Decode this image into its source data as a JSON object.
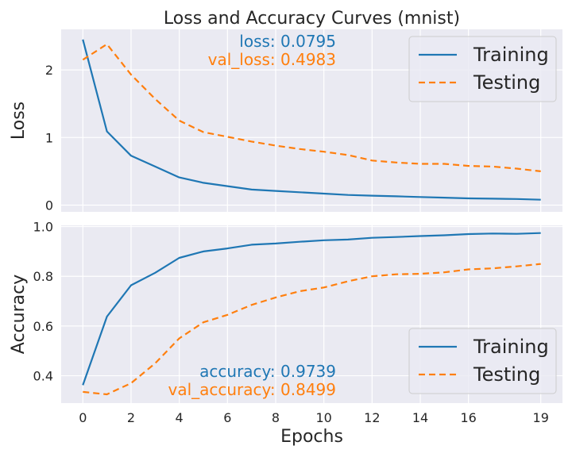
{
  "chart_data": [
    {
      "type": "line",
      "title": "Loss and Accuracy Curves (mnist)",
      "xlabel": "",
      "ylabel": "Loss",
      "x": [
        0,
        1,
        2,
        3,
        4,
        5,
        6,
        7,
        8,
        9,
        10,
        11,
        12,
        13,
        14,
        15,
        16,
        17,
        18,
        19
      ],
      "xlim": [
        -0.9,
        19.9
      ],
      "ylim": [
        -0.1,
        2.6
      ],
      "yticks": [
        0,
        1,
        2
      ],
      "grid": true,
      "legend_position": "top-right",
      "series": [
        {
          "name": "Training",
          "style": "solid",
          "color": "#1f77b4",
          "values": [
            2.45,
            1.09,
            0.73,
            0.57,
            0.41,
            0.33,
            0.28,
            0.23,
            0.21,
            0.19,
            0.17,
            0.15,
            0.14,
            0.13,
            0.12,
            0.11,
            0.1,
            0.095,
            0.09,
            0.08
          ]
        },
        {
          "name": "Testing",
          "style": "dashed",
          "color": "#ff7f0e",
          "values": [
            2.15,
            2.38,
            1.93,
            1.57,
            1.25,
            1.08,
            1.01,
            0.94,
            0.88,
            0.83,
            0.79,
            0.74,
            0.66,
            0.63,
            0.61,
            0.61,
            0.58,
            0.57,
            0.54,
            0.5
          ]
        }
      ],
      "annotations": [
        {
          "text": "loss: 0.0795",
          "color": "#1f77b4"
        },
        {
          "text": "val_loss: 0.4983",
          "color": "#ff7f0e"
        }
      ]
    },
    {
      "type": "line",
      "title": "",
      "xlabel": "Epochs",
      "ylabel": "Accuracy",
      "x": [
        0,
        1,
        2,
        3,
        4,
        5,
        6,
        7,
        8,
        9,
        10,
        11,
        12,
        13,
        14,
        15,
        16,
        17,
        18,
        19
      ],
      "xlim": [
        -0.9,
        19.9
      ],
      "ylim": [
        0.29,
        1.005
      ],
      "xticks": [
        0,
        2,
        4,
        6,
        8,
        10,
        12,
        14,
        16,
        19
      ],
      "yticks": [
        0.4,
        0.6,
        0.8,
        1.0
      ],
      "ytick_labels": [
        "0.4",
        "0.6",
        "0.8",
        "1.0"
      ],
      "grid": true,
      "legend_position": "bottom-right",
      "series": [
        {
          "name": "Training",
          "style": "solid",
          "color": "#1f77b4",
          "values": [
            0.362,
            0.638,
            0.764,
            0.814,
            0.874,
            0.9,
            0.912,
            0.927,
            0.932,
            0.939,
            0.945,
            0.948,
            0.955,
            0.958,
            0.962,
            0.965,
            0.97,
            0.972,
            0.971,
            0.9739
          ]
        },
        {
          "name": "Testing",
          "style": "dashed",
          "color": "#ff7f0e",
          "values": [
            0.335,
            0.325,
            0.37,
            0.45,
            0.55,
            0.615,
            0.645,
            0.685,
            0.715,
            0.74,
            0.755,
            0.78,
            0.8,
            0.808,
            0.81,
            0.816,
            0.828,
            0.832,
            0.84,
            0.8499
          ]
        }
      ],
      "annotations": [
        {
          "text": "accuracy: 0.9739",
          "color": "#1f77b4"
        },
        {
          "text": "val_accuracy: 0.8499",
          "color": "#ff7f0e"
        }
      ]
    }
  ],
  "colors": {
    "plot_background": "#eaeaf2",
    "grid": "#ffffff",
    "training": "#1f77b4",
    "testing": "#ff7f0e"
  }
}
